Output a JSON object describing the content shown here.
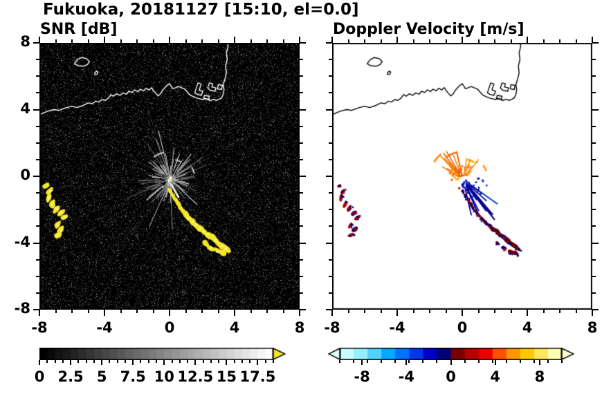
{
  "title": "Fukuoka, 20181127 [15:10, el=0.0]",
  "panels": [
    {
      "id": "snr",
      "title": "SNR [dB]",
      "xlim": [
        -8,
        8
      ],
      "ylim": [
        -8,
        8
      ],
      "xtick_values": [
        -8,
        -4,
        0,
        4,
        8
      ],
      "xtick_labels": [
        "-8",
        "-4",
        "0",
        "4",
        "8"
      ],
      "ytick_values": [
        8,
        4,
        0,
        -4,
        -8
      ],
      "ytick_labels": [
        "8",
        "4",
        "0",
        "-4",
        "-8"
      ],
      "minor_step": 1,
      "show_y_labels": true,
      "background": "#000000",
      "coast_color": "#ffffff"
    },
    {
      "id": "vel",
      "title": "Doppler Velocity [m/s]",
      "xlim": [
        -8,
        8
      ],
      "ylim": [
        -8,
        8
      ],
      "xtick_values": [
        -8,
        -4,
        0,
        4,
        8
      ],
      "xtick_labels": [
        "-8",
        "-4",
        "0",
        "4",
        "8"
      ],
      "ytick_values": [
        8,
        4,
        0,
        -4,
        -8
      ],
      "ytick_labels": [
        "8",
        "4",
        "0",
        "-4",
        "-8"
      ],
      "minor_step": 1,
      "show_y_labels": false,
      "background": "#ffffff",
      "coast_color": "#000000"
    }
  ],
  "colorbars": [
    {
      "id": "snr",
      "vmin": 0,
      "vmax": 18.75,
      "tick_values": [
        0,
        2.5,
        5,
        7.5,
        10,
        12.5,
        15,
        17.5
      ],
      "tick_labels": [
        "0",
        "2.5",
        "5",
        "7.5",
        "10",
        "12.5",
        "15",
        "17.5"
      ],
      "minor_step": 0.625,
      "type": "grayscale",
      "start_color": "#000000",
      "end_color": "#ffffff",
      "over_arrow_color": "#f2e426",
      "left_arrow": false,
      "right_arrow": true
    },
    {
      "id": "vel",
      "vmin": -10,
      "vmax": 10,
      "tick_values": [
        -8,
        -4,
        0,
        4,
        8
      ],
      "tick_labels": [
        "-8",
        "-4",
        "0",
        "4",
        "8"
      ],
      "minor_step": 1.25,
      "type": "segments",
      "colors": [
        "#c8ffff",
        "#96f0ff",
        "#50d2ff",
        "#00aaff",
        "#0073ff",
        "#0038e6",
        "#0000c8",
        "#000078",
        "#780000",
        "#b40000",
        "#e60000",
        "#ff5000",
        "#ff9600",
        "#ffc800",
        "#ffe65a",
        "#ffffb4"
      ],
      "under_arrow_color": "#e0ffff",
      "over_arrow_color": "#ffffd2",
      "left_arrow": true,
      "right_arrow": true
    }
  ],
  "chart_data": {
    "type": "heatmap",
    "station": "Fukuoka",
    "date": "20181127",
    "time": "15:10",
    "elevation_deg": 0.0,
    "panels": [
      "SNR [dB]",
      "Doppler Velocity [m/s]"
    ],
    "xlim": [
      -8,
      8
    ],
    "ylim": [
      -8,
      8
    ],
    "snr_scale_db": {
      "min": 0,
      "max": 17.5,
      "label_step": 2.5
    },
    "velocity_scale_ms": {
      "min": -10,
      "max": 10,
      "label_step": 4
    },
    "radar_center": [
      0.05,
      -0.2
    ],
    "snr_echo_color": "#f5e726",
    "noise": {
      "seed": 5,
      "count": 30000
    },
    "snr_streaks": {
      "seed": 11,
      "count": 95,
      "long_count": 42
    },
    "snr_arcs": [
      {
        "r": 1.7,
        "a1": 104,
        "a2": 126,
        "color": "#cccccc",
        "w": 2
      },
      {
        "r": 1.25,
        "a1": 58,
        "a2": 76,
        "color": "#bbbbbb",
        "w": 2
      },
      {
        "r": 1.5,
        "a1": 14,
        "a2": 30,
        "color": "#cccccc",
        "w": 2
      }
    ],
    "snr_bright_segments": [
      [
        0.12,
        -0.5,
        0.55,
        -1.25
      ],
      [
        -0.05,
        -0.3,
        0.1,
        -0.05
      ]
    ],
    "coastline": [
      [
        -8.0,
        3.7
      ],
      [
        -7.5,
        3.9
      ],
      [
        -7.1,
        4.0
      ],
      [
        -6.8,
        3.95
      ],
      [
        -6.4,
        4.1
      ],
      [
        -6.0,
        4.2
      ],
      [
        -5.7,
        4.12
      ],
      [
        -5.3,
        4.25
      ],
      [
        -5.0,
        4.4
      ],
      [
        -4.75,
        4.35
      ],
      [
        -4.55,
        4.5
      ],
      [
        -4.35,
        4.45
      ],
      [
        -4.15,
        4.6
      ],
      [
        -3.95,
        4.55
      ],
      [
        -3.75,
        4.7
      ],
      [
        -3.6,
        4.9
      ],
      [
        -3.45,
        4.8
      ],
      [
        -3.25,
        4.95
      ],
      [
        -3.05,
        4.85
      ],
      [
        -2.85,
        5.0
      ],
      [
        -2.65,
        4.92
      ],
      [
        -2.5,
        5.1
      ],
      [
        -2.3,
        5.02
      ],
      [
        -2.15,
        5.18
      ],
      [
        -1.95,
        5.08
      ],
      [
        -1.8,
        5.22
      ],
      [
        -1.6,
        5.12
      ],
      [
        -1.45,
        5.28
      ],
      [
        -1.25,
        5.18
      ],
      [
        -1.1,
        5.32
      ],
      [
        -1.0,
        5.15
      ],
      [
        -0.85,
        4.98
      ],
      [
        -0.7,
        4.82
      ],
      [
        -0.55,
        4.95
      ],
      [
        -0.45,
        5.12
      ],
      [
        -0.3,
        5.3
      ],
      [
        -0.15,
        5.45
      ],
      [
        0.0,
        5.55
      ],
      [
        0.1,
        5.4
      ],
      [
        0.2,
        5.25
      ],
      [
        0.35,
        5.3
      ],
      [
        0.55,
        5.38
      ],
      [
        0.75,
        5.3
      ],
      [
        0.95,
        5.22
      ],
      [
        1.1,
        5.05
      ],
      [
        1.25,
        4.88
      ],
      [
        1.45,
        4.78
      ],
      [
        1.65,
        4.7
      ],
      [
        1.85,
        4.65
      ],
      [
        2.05,
        4.6
      ],
      [
        2.2,
        4.68
      ],
      [
        2.35,
        4.6
      ],
      [
        2.5,
        4.55
      ],
      [
        2.7,
        4.62
      ],
      [
        2.9,
        4.55
      ],
      [
        3.05,
        4.62
      ],
      [
        3.2,
        4.7
      ],
      [
        3.3,
        4.9
      ],
      [
        3.35,
        5.2
      ],
      [
        3.3,
        5.5
      ],
      [
        3.4,
        5.8
      ],
      [
        3.5,
        6.2
      ],
      [
        3.45,
        6.6
      ],
      [
        3.55,
        7.0
      ],
      [
        3.5,
        7.4
      ],
      [
        3.6,
        7.8
      ],
      [
        3.55,
        8.0
      ]
    ],
    "islands": [
      [
        [
          -5.85,
          6.75
        ],
        [
          -5.65,
          7.0
        ],
        [
          -5.4,
          7.12
        ],
        [
          -5.1,
          7.05
        ],
        [
          -4.92,
          6.88
        ],
        [
          -5.05,
          6.7
        ],
        [
          -5.3,
          6.6
        ],
        [
          -5.6,
          6.62
        ]
      ],
      [
        [
          -4.6,
          6.2
        ],
        [
          -4.5,
          6.3
        ],
        [
          -4.4,
          6.25
        ],
        [
          -4.45,
          6.12
        ],
        [
          -4.58,
          6.1
        ]
      ]
    ],
    "piers": [
      [
        [
          1.55,
          5.0
        ],
        [
          1.75,
          5.6
        ],
        [
          1.95,
          5.53
        ],
        [
          1.83,
          5.18
        ],
        [
          2.05,
          5.1
        ],
        [
          1.95,
          4.85
        ],
        [
          1.7,
          4.92
        ]
      ],
      [
        [
          2.35,
          5.3
        ],
        [
          2.45,
          5.6
        ],
        [
          2.65,
          5.55
        ],
        [
          2.6,
          5.35
        ],
        [
          2.85,
          5.3
        ],
        [
          2.8,
          5.1
        ],
        [
          2.5,
          5.15
        ]
      ],
      [
        [
          2.95,
          5.25
        ],
        [
          3.0,
          5.5
        ],
        [
          3.25,
          5.45
        ],
        [
          3.2,
          5.2
        ]
      ],
      [
        [
          2.1,
          4.65
        ],
        [
          2.15,
          4.85
        ],
        [
          2.45,
          4.8
        ],
        [
          2.42,
          4.62
        ]
      ]
    ],
    "echoes": [
      [
        -7.55,
        -0.55,
        0.2,
        0.11,
        25,
        2
      ],
      [
        -7.35,
        -0.9,
        0.26,
        0.13,
        45,
        -3
      ],
      [
        -7.42,
        -1.3,
        0.28,
        0.15,
        80,
        2
      ],
      [
        -7.2,
        -1.65,
        0.26,
        0.14,
        65,
        2
      ],
      [
        -6.95,
        -1.95,
        0.28,
        0.15,
        50,
        2
      ],
      [
        -6.68,
        -2.2,
        0.28,
        0.15,
        40,
        -4
      ],
      [
        -6.45,
        -2.45,
        0.26,
        0.14,
        35,
        2
      ],
      [
        -6.88,
        -2.95,
        0.24,
        0.13,
        60,
        2
      ],
      [
        -6.65,
        -3.2,
        0.26,
        0.14,
        45,
        -3
      ],
      [
        -6.85,
        -3.55,
        0.24,
        0.13,
        30,
        2
      ],
      [
        0.05,
        -0.9,
        0.17,
        0.1,
        -55,
        1
      ],
      [
        0.22,
        -1.15,
        0.19,
        0.1,
        -55,
        1
      ],
      [
        0.38,
        -1.4,
        0.19,
        0.11,
        -52,
        -2
      ],
      [
        0.52,
        -1.62,
        0.21,
        0.11,
        -52,
        1
      ],
      [
        0.68,
        -1.88,
        0.21,
        0.12,
        -50,
        1
      ],
      [
        0.85,
        -2.1,
        0.23,
        0.12,
        -50,
        1
      ],
      [
        1.02,
        -2.32,
        0.23,
        0.13,
        -48,
        -2
      ],
      [
        1.22,
        -2.55,
        0.25,
        0.13,
        -45,
        1
      ],
      [
        1.45,
        -2.75,
        0.25,
        0.13,
        -42,
        1
      ],
      [
        1.66,
        -2.95,
        0.27,
        0.14,
        -40,
        -3
      ],
      [
        1.9,
        -3.15,
        0.27,
        0.14,
        -40,
        1
      ],
      [
        2.12,
        -3.33,
        0.29,
        0.15,
        -38,
        1
      ],
      [
        2.36,
        -3.5,
        0.29,
        0.15,
        -36,
        1
      ],
      [
        2.6,
        -3.66,
        0.29,
        0.15,
        -35,
        -2
      ],
      [
        2.82,
        -3.85,
        0.31,
        0.16,
        -38,
        1
      ],
      [
        3.02,
        -4.05,
        0.31,
        0.16,
        -38,
        1
      ],
      [
        3.25,
        -4.2,
        0.29,
        0.15,
        -34,
        1
      ],
      [
        3.46,
        -4.35,
        0.27,
        0.14,
        -33,
        1
      ],
      [
        2.2,
        -4.0,
        0.21,
        0.12,
        -34,
        1
      ],
      [
        2.55,
        -4.3,
        0.24,
        0.13,
        -30,
        -2
      ],
      [
        2.95,
        -4.52,
        0.29,
        0.15,
        -28,
        1
      ],
      [
        3.3,
        -4.62,
        0.23,
        0.13,
        -24,
        1
      ]
    ],
    "vel_streak_groups": [
      {
        "a1": 95,
        "a2": 178,
        "r1": 0.25,
        "len1": 0.5,
        "len2": 1.7,
        "count": 13,
        "colors": [
          "#ff7d00",
          "#e66400"
        ],
        "w": 1.6
      },
      {
        "a1": 42,
        "a2": 88,
        "r1": 0.3,
        "len1": 0.4,
        "len2": 1.1,
        "count": 6,
        "colors": [
          "#ff9600",
          "#ff7d00"
        ],
        "w": 1.6
      },
      {
        "a1": -80,
        "a2": -15,
        "r1": 0.3,
        "len1": 0.8,
        "len2": 2.4,
        "count": 9,
        "colors": [
          "#0000b4",
          "#000096",
          "#0032d2"
        ],
        "w": 1.8
      },
      {
        "a1": -60,
        "a2": -48,
        "r1": 0.4,
        "len1": 2.2,
        "len2": 2.7,
        "count": 2,
        "colors": [
          "#000080"
        ],
        "w": 2.2
      }
    ],
    "vel_center_specks": [
      {
        "a1": 55,
        "a2": 185,
        "r1": 0.15,
        "r2": 1.05,
        "count": 38,
        "colors": [
          "#ff7d00",
          "#e65a00",
          "#ffaa00",
          "#ff5000"
        ],
        "size": 2.5
      },
      {
        "a1": -100,
        "a2": 5,
        "r1": 0.15,
        "r2": 1.5,
        "count": 46,
        "colors": [
          "#0000c8",
          "#000078",
          "#0038e6"
        ],
        "size": 2.5
      }
    ],
    "vel_arcs": [
      {
        "r": 1.7,
        "a1": 104,
        "a2": 126,
        "color": "#ff7000",
        "w": 2.5
      },
      {
        "r": 2.05,
        "a1": 132,
        "a2": 148,
        "color": "#ff8c00",
        "w": 2.5
      },
      {
        "r": 1.25,
        "a1": 58,
        "a2": 76,
        "color": "#ffaa00",
        "w": 2.5
      },
      {
        "r": 1.5,
        "a1": 22,
        "a2": 34,
        "color": "#ff9600",
        "w": 2.5
      }
    ],
    "vel_isolated_specks": [
      [
        -0.55,
        0.12,
        "#ff6400"
      ],
      [
        0.32,
        0.58,
        "#ff8c00"
      ],
      [
        -0.18,
        -0.72,
        "#c80000"
      ],
      [
        0.9,
        0.85,
        "#ff9600"
      ]
    ]
  }
}
